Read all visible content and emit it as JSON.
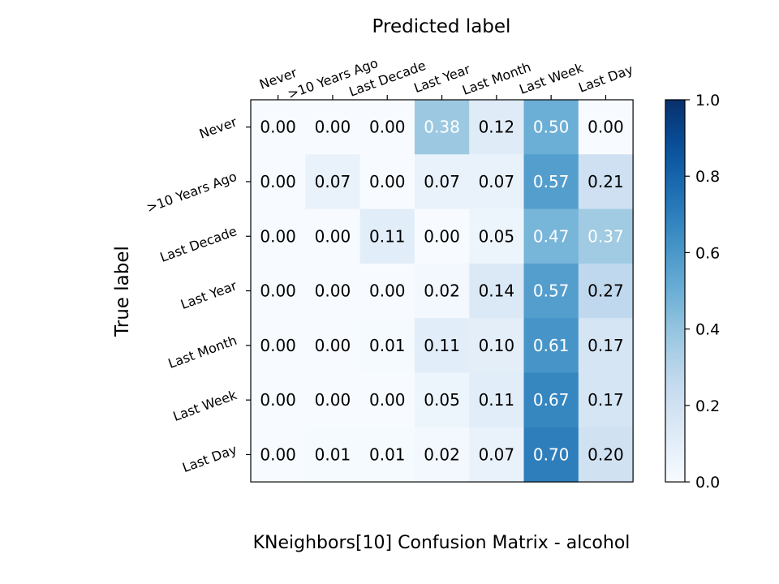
{
  "chart_data": {
    "type": "heatmap",
    "title": "KNeighbors[10]  Confusion Matrix - alcohol",
    "xlabel": "Predicted label",
    "ylabel": "True label",
    "x_categories": [
      "Never",
      ">10 Years Ago",
      "Last Decade",
      "Last Year",
      "Last Month",
      "Last Week",
      "Last Day"
    ],
    "y_categories": [
      "Never",
      ">10 Years Ago",
      "Last Decade",
      "Last Year",
      "Last Month",
      "Last Week",
      "Last Day"
    ],
    "values": [
      [
        0.0,
        0.0,
        0.0,
        0.38,
        0.12,
        0.5,
        0.0
      ],
      [
        0.0,
        0.07,
        0.0,
        0.07,
        0.07,
        0.57,
        0.21
      ],
      [
        0.0,
        0.0,
        0.11,
        0.0,
        0.05,
        0.47,
        0.37
      ],
      [
        0.0,
        0.0,
        0.0,
        0.02,
        0.14,
        0.57,
        0.27
      ],
      [
        0.0,
        0.0,
        0.01,
        0.11,
        0.1,
        0.61,
        0.17
      ],
      [
        0.0,
        0.0,
        0.0,
        0.05,
        0.11,
        0.67,
        0.17
      ],
      [
        0.0,
        0.01,
        0.01,
        0.02,
        0.07,
        0.7,
        0.2
      ]
    ],
    "value_format": "2 decimals",
    "colormap": "Blues",
    "vmin": 0.0,
    "vmax": 1.0,
    "colorbar_ticks": [
      "0.0",
      "0.2",
      "0.4",
      "0.6",
      "0.8",
      "1.0"
    ],
    "x_axis_position": "top",
    "grid": false
  }
}
